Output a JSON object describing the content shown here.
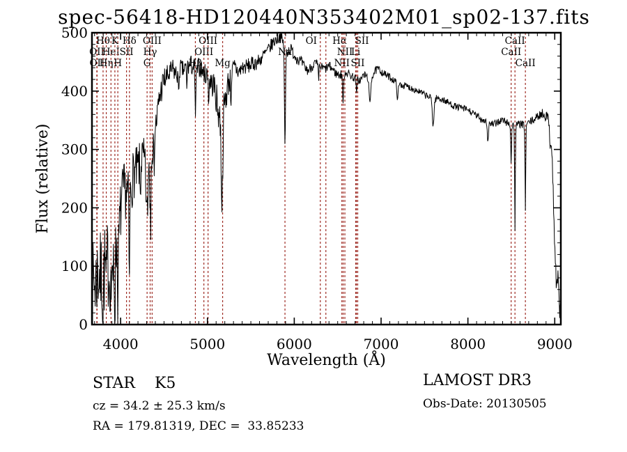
{
  "title": "spec-56418-HD120440N353402M01_sp02-137.fits",
  "footer": {
    "classification": "STAR    K5",
    "cz": "cz = 34.2 ± 25.3 km/s",
    "ra_dec": "RA = 179.81319, DEC =  33.85233",
    "survey": "LAMOST DR3",
    "obs_date": "Obs-Date: 20130505"
  },
  "chart_data": {
    "type": "line",
    "title": "spec-56418-HD120440N353402M01_sp02-137.fits",
    "xlabel": "Wavelength (Å)",
    "ylabel": "Flux (relative)",
    "xlim": [
      3670,
      9070
    ],
    "ylim": [
      0,
      500
    ],
    "xticks": [
      4000,
      5000,
      6000,
      7000,
      8000,
      9000
    ],
    "yticks": [
      0,
      100,
      200,
      300,
      400,
      500
    ],
    "x_minor_step": 100,
    "y_minor_step": 20,
    "grid": false,
    "spectrum_color": "#000000",
    "marker_line_color": "#9e2b23",
    "series_note": "K5 stellar spectrum: continuum envelope sampled in (wavelength Å, relative flux); noisy trace rises from ~70 at 3700 Å to peak ~495 near 5850 Å then declines to ~350 at 8900 Å with sharp drop to ~20 at 9060 Å",
    "envelope": [
      [
        3670,
        60
      ],
      [
        3690,
        75
      ],
      [
        3710,
        70
      ],
      [
        3730,
        85
      ],
      [
        3750,
        95
      ],
      [
        3770,
        80
      ],
      [
        3790,
        85
      ],
      [
        3810,
        90
      ],
      [
        3830,
        110
      ],
      [
        3850,
        105
      ],
      [
        3870,
        95
      ],
      [
        3890,
        100
      ],
      [
        3910,
        110
      ],
      [
        3930,
        115
      ],
      [
        3950,
        140
      ],
      [
        3970,
        130
      ],
      [
        3985,
        160
      ],
      [
        4000,
        195
      ],
      [
        4030,
        225
      ],
      [
        4060,
        230
      ],
      [
        4090,
        215
      ],
      [
        4120,
        235
      ],
      [
        4150,
        260
      ],
      [
        4180,
        260
      ],
      [
        4210,
        270
      ],
      [
        4240,
        285
      ],
      [
        4270,
        280
      ],
      [
        4300,
        250
      ],
      [
        4330,
        285
      ],
      [
        4360,
        305
      ],
      [
        4390,
        330
      ],
      [
        4420,
        355
      ],
      [
        4450,
        390
      ],
      [
        4480,
        410
      ],
      [
        4510,
        420
      ],
      [
        4540,
        425
      ],
      [
        4570,
        430
      ],
      [
        4600,
        438
      ],
      [
        4630,
        430
      ],
      [
        4660,
        428
      ],
      [
        4690,
        440
      ],
      [
        4720,
        435
      ],
      [
        4750,
        440
      ],
      [
        4780,
        442
      ],
      [
        4810,
        445
      ],
      [
        4840,
        440
      ],
      [
        4870,
        430
      ],
      [
        4900,
        442
      ],
      [
        4930,
        438
      ],
      [
        4960,
        430
      ],
      [
        5000,
        428
      ],
      [
        5040,
        415
      ],
      [
        5080,
        408
      ],
      [
        5120,
        370
      ],
      [
        5160,
        345
      ],
      [
        5200,
        380
      ],
      [
        5240,
        415
      ],
      [
        5280,
        430
      ],
      [
        5320,
        440
      ],
      [
        5360,
        432
      ],
      [
        5400,
        440
      ],
      [
        5450,
        442
      ],
      [
        5500,
        445
      ],
      [
        5550,
        448
      ],
      [
        5600,
        452
      ],
      [
        5650,
        462
      ],
      [
        5700,
        470
      ],
      [
        5750,
        482
      ],
      [
        5800,
        490
      ],
      [
        5840,
        494
      ],
      [
        5880,
        480
      ],
      [
        5920,
        468
      ],
      [
        5960,
        472
      ],
      [
        6000,
        462
      ],
      [
        6040,
        455
      ],
      [
        6080,
        450
      ],
      [
        6120,
        440
      ],
      [
        6160,
        435
      ],
      [
        6200,
        442
      ],
      [
        6240,
        448
      ],
      [
        6280,
        443
      ],
      [
        6320,
        440
      ],
      [
        6360,
        438
      ],
      [
        6400,
        443
      ],
      [
        6440,
        438
      ],
      [
        6480,
        430
      ],
      [
        6520,
        428
      ],
      [
        6560,
        428
      ],
      [
        6600,
        433
      ],
      [
        6640,
        428
      ],
      [
        6680,
        424
      ],
      [
        6720,
        420
      ],
      [
        6760,
        418
      ],
      [
        6800,
        428
      ],
      [
        6840,
        425
      ],
      [
        6880,
        420
      ],
      [
        6920,
        432
      ],
      [
        6960,
        438
      ],
      [
        7000,
        434
      ],
      [
        7050,
        428
      ],
      [
        7100,
        424
      ],
      [
        7150,
        418
      ],
      [
        7200,
        412
      ],
      [
        7250,
        410
      ],
      [
        7300,
        408
      ],
      [
        7350,
        405
      ],
      [
        7400,
        402
      ],
      [
        7450,
        398
      ],
      [
        7500,
        394
      ],
      [
        7550,
        390
      ],
      [
        7600,
        386
      ],
      [
        7650,
        388
      ],
      [
        7700,
        386
      ],
      [
        7750,
        382
      ],
      [
        7800,
        378
      ],
      [
        7850,
        374
      ],
      [
        7900,
        372
      ],
      [
        7950,
        370
      ],
      [
        8000,
        368
      ],
      [
        8050,
        362
      ],
      [
        8100,
        358
      ],
      [
        8150,
        352
      ],
      [
        8200,
        350
      ],
      [
        8250,
        345
      ],
      [
        8300,
        342
      ],
      [
        8350,
        348
      ],
      [
        8400,
        350
      ],
      [
        8450,
        346
      ],
      [
        8500,
        342
      ],
      [
        8550,
        340
      ],
      [
        8600,
        344
      ],
      [
        8650,
        340
      ],
      [
        8700,
        346
      ],
      [
        8750,
        350
      ],
      [
        8800,
        356
      ],
      [
        8850,
        362
      ],
      [
        8900,
        358
      ],
      [
        8930,
        350
      ],
      [
        8960,
        330
      ],
      [
        8980,
        240
      ],
      [
        9000,
        130
      ],
      [
        9010,
        90
      ],
      [
        9020,
        70
      ],
      [
        9030,
        85
      ],
      [
        9040,
        75
      ],
      [
        9050,
        40
      ],
      [
        9060,
        20
      ]
    ],
    "noise_amplitude": [
      [
        3670,
        75
      ],
      [
        3800,
        80
      ],
      [
        3900,
        75
      ],
      [
        3980,
        60
      ],
      [
        4050,
        50
      ],
      [
        4150,
        45
      ],
      [
        4250,
        40
      ],
      [
        4350,
        40
      ],
      [
        4450,
        28
      ],
      [
        4550,
        20
      ],
      [
        4700,
        16
      ],
      [
        4850,
        18
      ],
      [
        4950,
        16
      ],
      [
        5050,
        22
      ],
      [
        5150,
        35
      ],
      [
        5250,
        25
      ],
      [
        5400,
        14
      ],
      [
        5550,
        13
      ],
      [
        5700,
        12
      ],
      [
        5850,
        11
      ],
      [
        6000,
        10
      ],
      [
        6200,
        9
      ],
      [
        6400,
        8
      ],
      [
        6600,
        8
      ],
      [
        6900,
        7
      ],
      [
        7200,
        6
      ],
      [
        7600,
        6
      ],
      [
        8000,
        6
      ],
      [
        8400,
        7
      ],
      [
        8800,
        7
      ],
      [
        8960,
        12
      ],
      [
        9010,
        25
      ],
      [
        9060,
        15
      ]
    ],
    "absorption_dips": [
      [
        3798,
        70,
        10
      ],
      [
        3835,
        60,
        10
      ],
      [
        3889,
        50,
        10
      ],
      [
        3933,
        90,
        12
      ],
      [
        3969,
        80,
        12
      ],
      [
        4102,
        120,
        10
      ],
      [
        4227,
        60,
        10
      ],
      [
        4305,
        70,
        22
      ],
      [
        4340,
        90,
        10
      ],
      [
        4384,
        50,
        12
      ],
      [
        4668,
        45,
        8
      ],
      [
        4762,
        40,
        8
      ],
      [
        4861,
        70,
        12
      ],
      [
        5015,
        45,
        8
      ],
      [
        5168,
        140,
        20
      ],
      [
        5270,
        40,
        10
      ],
      [
        5893,
        175,
        14
      ],
      [
        6280,
        25,
        10
      ],
      [
        6563,
        55,
        12
      ],
      [
        6717,
        30,
        10
      ],
      [
        6870,
        45,
        20
      ],
      [
        7190,
        25,
        18
      ],
      [
        7600,
        45,
        22
      ],
      [
        8230,
        30,
        18
      ],
      [
        8498,
        70,
        10
      ],
      [
        8542,
        180,
        9
      ],
      [
        8662,
        150,
        9
      ],
      [
        8950,
        30,
        18
      ]
    ],
    "deep_spikes": [
      [
        3705,
        3
      ],
      [
        3745,
        10
      ],
      [
        3792,
        5
      ],
      [
        3870,
        15
      ],
      [
        3910,
        25
      ],
      [
        4100,
        35
      ],
      [
        4346,
        120
      ],
      [
        5170,
        218
      ],
      [
        5893,
        300
      ]
    ],
    "spectral_lines": [
      {
        "label": "OII",
        "wavelength": 3726,
        "row": 2
      },
      {
        "label": "OII",
        "wavelength": 3729,
        "row": 3
      },
      {
        "label": "Hθ",
        "wavelength": 3798,
        "row": 1
      },
      {
        "label": "Hη",
        "wavelength": 3835,
        "row": 3
      },
      {
        "label": "HeI",
        "wavelength": 3889,
        "row": 2
      },
      {
        "label": "K",
        "wavelength": 3934,
        "row": 1
      },
      {
        "label": "H",
        "wavelength": 3968,
        "row": 3
      },
      {
        "label": "SII",
        "wavelength": 4068,
        "row": 2
      },
      {
        "label": "Hδ",
        "wavelength": 4102,
        "row": 1
      },
      {
        "label": "G",
        "wavelength": 4305,
        "row": 3
      },
      {
        "label": "Hγ",
        "wavelength": 4340,
        "row": 2
      },
      {
        "label": "OIII",
        "wavelength": 4363,
        "row": 1
      },
      {
        "label": "Hβ",
        "wavelength": 4861,
        "row": 3
      },
      {
        "label": "OIII",
        "wavelength": 4959,
        "row": 2
      },
      {
        "label": "OIII",
        "wavelength": 5007,
        "row": 1
      },
      {
        "label": "Mg",
        "wavelength": 5175,
        "row": 3
      },
      {
        "label": "Na",
        "wavelength": 5893,
        "row": 2
      },
      {
        "label": "OI",
        "wavelength": 6300,
        "row": 1,
        "dx": -13
      },
      {
        "label": "",
        "wavelength": 6364,
        "row": 0
      },
      {
        "label": "NII",
        "wavelength": 6548,
        "row": 3
      },
      {
        "label": "Hα",
        "wavelength": 6563,
        "row": 1,
        "dx": -5
      },
      {
        "label": "NII",
        "wavelength": 6583,
        "row": 2
      },
      {
        "label": "Li",
        "wavelength": 6708,
        "row": 2
      },
      {
        "label": "SII",
        "wavelength": 6716,
        "row": 1,
        "dx": 8
      },
      {
        "label": "SII",
        "wavelength": 6731,
        "row": 3
      },
      {
        "label": "CaII",
        "wavelength": 8498,
        "row": 2
      },
      {
        "label": "CaII",
        "wavelength": 8542,
        "row": 1
      },
      {
        "label": "CaII",
        "wavelength": 8662,
        "row": 3
      }
    ]
  }
}
